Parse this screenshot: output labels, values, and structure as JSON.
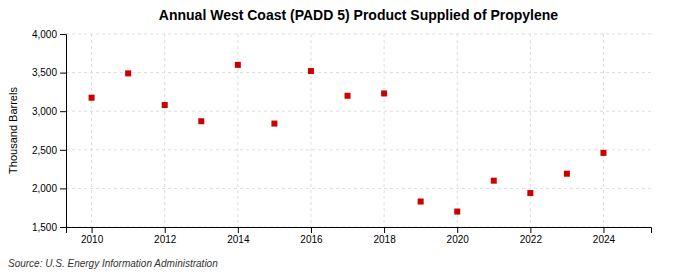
{
  "chart_data": {
    "type": "scatter",
    "title": "Annual West Coast (PADD 5) Product Supplied of Propylene",
    "y_label": "Thousand Barrels",
    "annotations": [
      "Source: U.S. Energy Information Administration"
    ],
    "x": [
      2010,
      2011,
      2012,
      2013,
      2014,
      2015,
      2016,
      2017,
      2018,
      2019,
      2020,
      2021,
      2022,
      2023,
      2024
    ],
    "values": [
      3175,
      3490,
      3080,
      2870,
      3600,
      2840,
      3520,
      3200,
      3230,
      1830,
      1700,
      2100,
      1940,
      2190,
      2460
    ],
    "color": "#cc0000",
    "marker": "square",
    "xlim": [
      2009.3,
      2025.3
    ],
    "xticks": [
      2010,
      2012,
      2014,
      2016,
      2018,
      2020,
      2022,
      2024
    ],
    "ylim": [
      1500,
      4000
    ],
    "yticks": [
      {
        "value": 1500,
        "label": "1,500"
      },
      {
        "value": 2000,
        "label": "2,000"
      },
      {
        "value": 2500,
        "label": "2,500"
      },
      {
        "value": 3000,
        "label": "3,000"
      },
      {
        "value": 3500,
        "label": "3,500"
      },
      {
        "value": 4000,
        "label": "4,000"
      }
    ],
    "grid": true
  }
}
